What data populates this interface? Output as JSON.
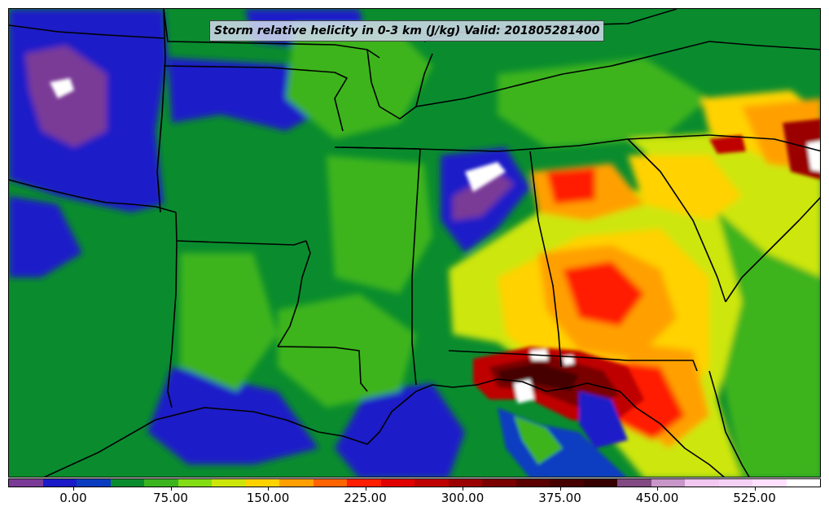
{
  "map": {
    "title": "Storm relative helicity in 0-3 km (J/kg) Valid: 201805281400",
    "product": "Storm relative helicity in 0-3 km",
    "units": "J/kg",
    "valid_time": "201805281400",
    "background_color": "#0a8c2e",
    "boundary_color": "#000000"
  },
  "colorbar": {
    "colors": [
      "#7a3a96",
      "#1a1ac8",
      "#0a3cc0",
      "#0a8c2e",
      "#3cb41e",
      "#84dc14",
      "#cde60a",
      "#ffd200",
      "#ffa000",
      "#ff6400",
      "#ff1e00",
      "#e10000",
      "#be0000",
      "#9b0000",
      "#7a0000",
      "#5a0000",
      "#460000",
      "#370000",
      "#824a82",
      "#c896c8",
      "#f0c8f0",
      "#f5d2f5",
      "#ffe1ff",
      "#ffffff"
    ],
    "tick_labels": [
      "0.00",
      "75.00",
      "150.00",
      "225.00",
      "300.00",
      "375.00",
      "450.00",
      "525.00"
    ]
  }
}
